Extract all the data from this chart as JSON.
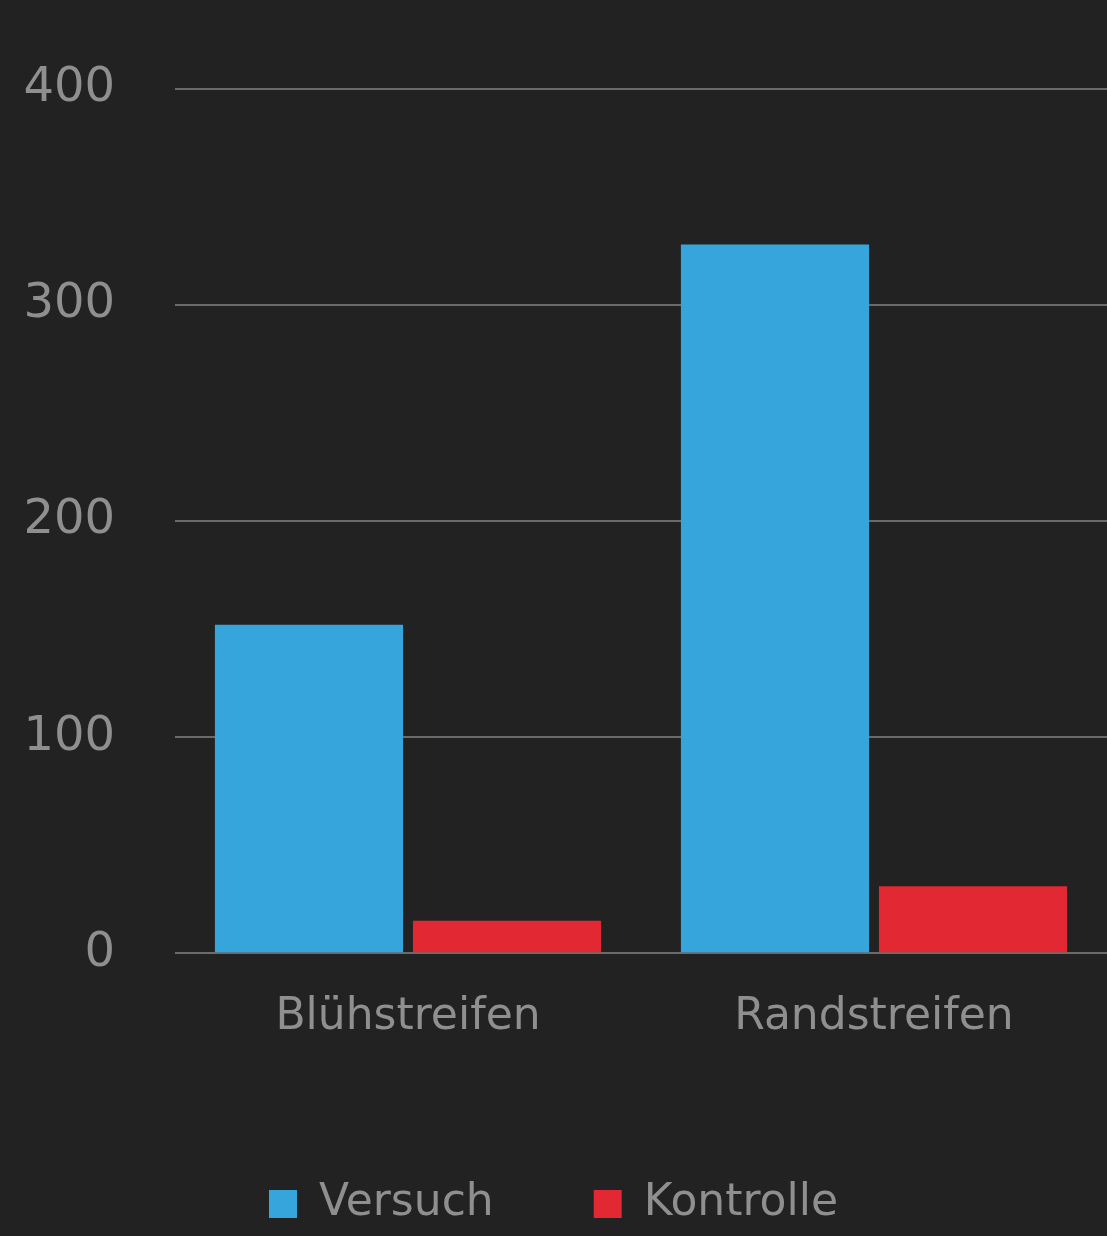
{
  "chart_data": {
    "type": "bar",
    "categories": [
      "Blühstreifen",
      "Randstreifen"
    ],
    "series": [
      {
        "name": "Versuch",
        "color": "#36a5dc",
        "values": [
          152,
          328
        ]
      },
      {
        "name": "Kontrolle",
        "color": "#e22832",
        "values": [
          15,
          31
        ]
      }
    ],
    "ylim": [
      0,
      400
    ],
    "yticks": [
      0,
      100,
      200,
      300,
      400
    ],
    "grid": "y",
    "legend": "bottom"
  }
}
